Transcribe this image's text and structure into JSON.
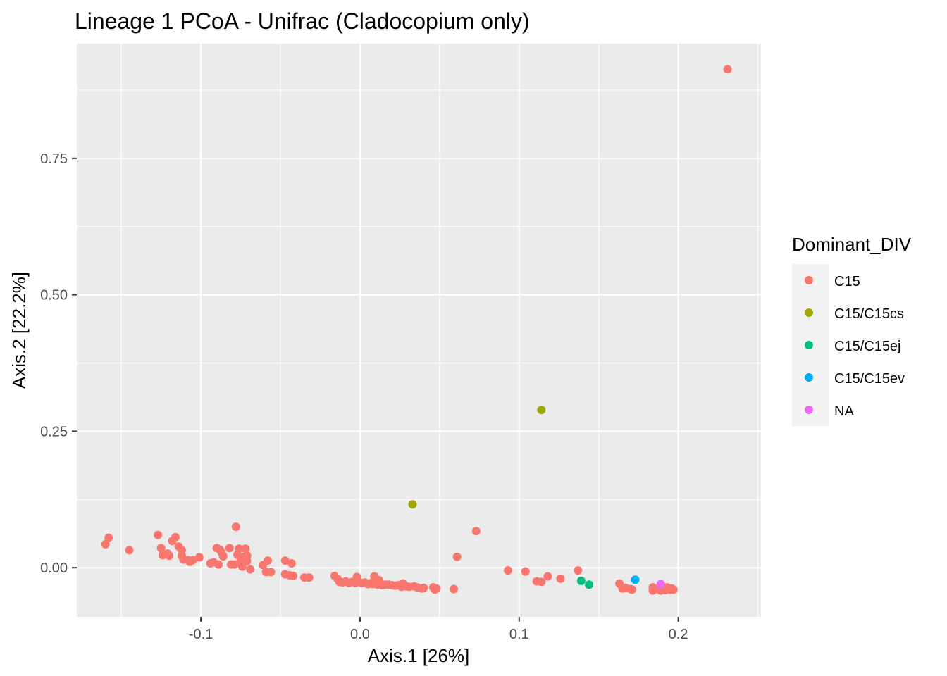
{
  "chart_data": {
    "type": "scatter",
    "title": "Lineage 1 PCoA - Unifrac (Cladocopium only)",
    "xlabel": "Axis.1   [26%]",
    "ylabel": "Axis.2   [22.2%]",
    "xlim": [
      -0.178,
      0.252
    ],
    "ylim": [
      -0.09,
      0.96
    ],
    "x_ticks": [
      -0.1,
      0.0,
      0.1,
      0.2
    ],
    "x_tick_labels": [
      "-0.1",
      "0.0",
      "0.1",
      "0.2"
    ],
    "y_ticks": [
      0.0,
      0.25,
      0.5,
      0.75
    ],
    "y_tick_labels": [
      "0.00",
      "0.25",
      "0.50",
      "0.75"
    ],
    "grid": true,
    "legend": {
      "title": "Dominant_DIV",
      "position": "right"
    },
    "series": [
      {
        "name": "C15",
        "color": "#F8766D",
        "points": [
          [
            -0.16,
            0.043
          ],
          [
            -0.158,
            0.055
          ],
          [
            -0.145,
            0.032
          ],
          [
            -0.127,
            0.06
          ],
          [
            -0.125,
            0.036
          ],
          [
            -0.124,
            0.023
          ],
          [
            -0.121,
            0.026
          ],
          [
            -0.12,
            0.022
          ],
          [
            -0.118,
            0.049
          ],
          [
            -0.116,
            0.056
          ],
          [
            -0.114,
            0.039
          ],
          [
            -0.112,
            0.032
          ],
          [
            -0.112,
            0.022
          ],
          [
            -0.111,
            0.015
          ],
          [
            -0.108,
            0.014
          ],
          [
            -0.107,
            0.011
          ],
          [
            -0.105,
            0.014
          ],
          [
            -0.101,
            0.019
          ],
          [
            -0.094,
            0.008
          ],
          [
            -0.092,
            0.01
          ],
          [
            -0.09,
            0.036
          ],
          [
            -0.089,
            0.006
          ],
          [
            -0.088,
            0.033
          ],
          [
            -0.087,
            0.028
          ],
          [
            -0.086,
            0.021
          ],
          [
            -0.082,
            0.036
          ],
          [
            -0.081,
            0.006
          ],
          [
            -0.079,
            0.006
          ],
          [
            -0.078,
            0.075
          ],
          [
            -0.077,
            0.024
          ],
          [
            -0.076,
            0.035
          ],
          [
            -0.075,
            0.014
          ],
          [
            -0.074,
            0.002
          ],
          [
            -0.073,
            0.02
          ],
          [
            -0.072,
            0.035
          ],
          [
            -0.071,
            0.022
          ],
          [
            -0.071,
            0.012
          ],
          [
            -0.069,
            -0.003
          ],
          [
            -0.061,
            0.005
          ],
          [
            -0.058,
            0.013
          ],
          [
            -0.059,
            -0.008
          ],
          [
            -0.056,
            -0.008
          ],
          [
            -0.047,
            0.013
          ],
          [
            -0.047,
            -0.012
          ],
          [
            -0.044,
            -0.014
          ],
          [
            -0.043,
            0.008
          ],
          [
            -0.042,
            -0.015
          ],
          [
            -0.035,
            -0.018
          ],
          [
            -0.032,
            -0.018
          ],
          [
            -0.016,
            -0.015
          ],
          [
            -0.014,
            -0.021
          ],
          [
            -0.013,
            -0.026
          ],
          [
            -0.011,
            -0.027
          ],
          [
            -0.009,
            -0.025
          ],
          [
            -0.007,
            -0.028
          ],
          [
            -0.005,
            -0.026
          ],
          [
            -0.003,
            -0.028
          ],
          [
            -0.002,
            -0.017
          ],
          [
            -0.001,
            -0.026
          ],
          [
            0.001,
            -0.028
          ],
          [
            0.003,
            -0.027
          ],
          [
            0.005,
            -0.03
          ],
          [
            0.007,
            -0.028
          ],
          [
            0.008,
            -0.03
          ],
          [
            0.009,
            -0.016
          ],
          [
            0.01,
            -0.025
          ],
          [
            0.011,
            -0.031
          ],
          [
            0.012,
            -0.023
          ],
          [
            0.013,
            -0.029
          ],
          [
            0.014,
            -0.032
          ],
          [
            0.016,
            -0.031
          ],
          [
            0.018,
            -0.031
          ],
          [
            0.02,
            -0.032
          ],
          [
            0.022,
            -0.033
          ],
          [
            0.024,
            -0.032
          ],
          [
            0.026,
            -0.035
          ],
          [
            0.027,
            -0.029
          ],
          [
            0.029,
            -0.034
          ],
          [
            0.031,
            -0.035
          ],
          [
            0.034,
            -0.034
          ],
          [
            0.036,
            -0.036
          ],
          [
            0.039,
            -0.038
          ],
          [
            0.04,
            -0.037
          ],
          [
            0.046,
            -0.036
          ],
          [
            0.047,
            -0.04
          ],
          [
            0.048,
            -0.038
          ],
          [
            0.059,
            -0.039
          ],
          [
            0.061,
            0.02
          ],
          [
            0.073,
            0.067
          ],
          [
            0.093,
            -0.005
          ],
          [
            0.104,
            -0.007
          ],
          [
            0.111,
            -0.025
          ],
          [
            0.114,
            -0.026
          ],
          [
            0.118,
            -0.016
          ],
          [
            0.126,
            -0.02
          ],
          [
            0.137,
            -0.005
          ],
          [
            0.163,
            -0.029
          ],
          [
            0.165,
            -0.038
          ],
          [
            0.167,
            -0.037
          ],
          [
            0.17,
            -0.039
          ],
          [
            0.171,
            -0.04
          ],
          [
            0.184,
            -0.036
          ],
          [
            0.184,
            -0.042
          ],
          [
            0.186,
            -0.039
          ],
          [
            0.189,
            -0.042
          ],
          [
            0.19,
            -0.036
          ],
          [
            0.192,
            -0.041
          ],
          [
            0.193,
            -0.036
          ],
          [
            0.195,
            -0.04
          ],
          [
            0.196,
            -0.038
          ],
          [
            0.197,
            -0.04
          ],
          [
            0.231,
            0.913
          ]
        ]
      },
      {
        "name": "C15/C15cs",
        "color": "#A3A500",
        "points": [
          [
            0.114,
            0.289
          ],
          [
            0.033,
            0.116
          ]
        ]
      },
      {
        "name": "C15/C15ej",
        "color": "#00BF7D",
        "points": [
          [
            0.139,
            -0.024
          ],
          [
            0.144,
            -0.031
          ]
        ]
      },
      {
        "name": "C15/C15ev",
        "color": "#00B0F6",
        "points": [
          [
            0.173,
            -0.022
          ]
        ]
      },
      {
        "name": "NA",
        "color": "#E76BF3",
        "points": [
          [
            0.189,
            -0.03
          ]
        ]
      }
    ]
  }
}
